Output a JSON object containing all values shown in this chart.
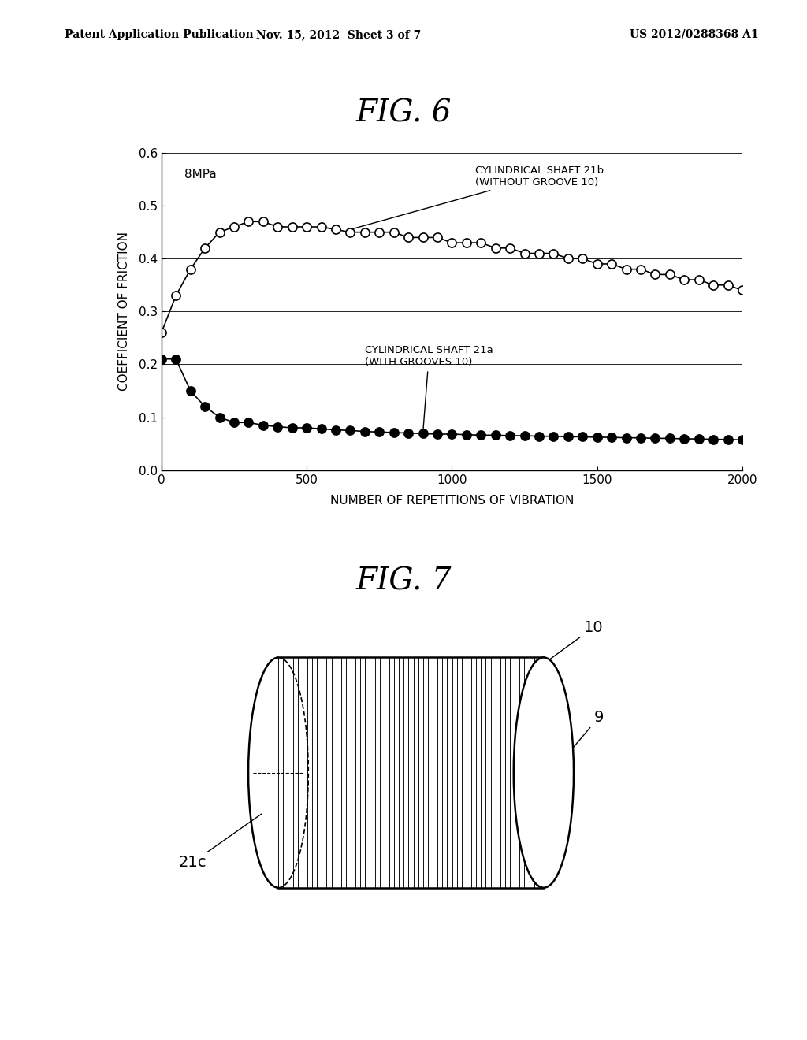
{
  "header_left": "Patent Application Publication",
  "header_mid": "Nov. 15, 2012  Sheet 3 of 7",
  "header_right": "US 2012/0288368 A1",
  "fig6_title": "FIG. 6",
  "fig7_title": "FIG. 7",
  "xlabel": "NUMBER OF REPETITIONS OF VIBRATION",
  "ylabel": "COEFFICIENT OF FRICTION",
  "pressure_label": "8MPa",
  "series_open_label_1": "CYLINDRICAL SHAFT 21b",
  "series_open_label_2": "(WITHOUT GROOVE 10)",
  "series_filled_label_1": "CYLINDRICAL SHAFT 21a",
  "series_filled_label_2": "(WITH GROOVES 10)",
  "xlim": [
    0,
    2000
  ],
  "ylim": [
    0,
    0.6
  ],
  "yticks": [
    0,
    0.1,
    0.2,
    0.3,
    0.4,
    0.5,
    0.6
  ],
  "xticks": [
    0,
    500,
    1000,
    1500,
    2000
  ],
  "open_x": [
    0,
    50,
    100,
    150,
    200,
    250,
    300,
    350,
    400,
    450,
    500,
    550,
    600,
    650,
    700,
    750,
    800,
    850,
    900,
    950,
    1000,
    1050,
    1100,
    1150,
    1200,
    1250,
    1300,
    1350,
    1400,
    1450,
    1500,
    1550,
    1600,
    1650,
    1700,
    1750,
    1800,
    1850,
    1900,
    1950,
    2000
  ],
  "open_y": [
    0.26,
    0.33,
    0.38,
    0.42,
    0.45,
    0.46,
    0.47,
    0.47,
    0.46,
    0.46,
    0.46,
    0.46,
    0.455,
    0.45,
    0.45,
    0.45,
    0.45,
    0.44,
    0.44,
    0.44,
    0.43,
    0.43,
    0.43,
    0.42,
    0.42,
    0.41,
    0.41,
    0.41,
    0.4,
    0.4,
    0.39,
    0.39,
    0.38,
    0.38,
    0.37,
    0.37,
    0.36,
    0.36,
    0.35,
    0.35,
    0.34
  ],
  "filled_x": [
    0,
    50,
    100,
    150,
    200,
    250,
    300,
    350,
    400,
    450,
    500,
    550,
    600,
    650,
    700,
    750,
    800,
    850,
    900,
    950,
    1000,
    1050,
    1100,
    1150,
    1200,
    1250,
    1300,
    1350,
    1400,
    1450,
    1500,
    1550,
    1600,
    1650,
    1700,
    1750,
    1800,
    1850,
    1900,
    1950,
    2000
  ],
  "filled_y": [
    0.21,
    0.21,
    0.15,
    0.12,
    0.1,
    0.09,
    0.09,
    0.085,
    0.082,
    0.08,
    0.08,
    0.078,
    0.076,
    0.075,
    0.073,
    0.072,
    0.071,
    0.07,
    0.069,
    0.068,
    0.068,
    0.067,
    0.066,
    0.066,
    0.065,
    0.065,
    0.064,
    0.064,
    0.063,
    0.063,
    0.062,
    0.062,
    0.061,
    0.061,
    0.06,
    0.06,
    0.059,
    0.059,
    0.058,
    0.058,
    0.057
  ],
  "background_color": "#ffffff",
  "line_color": "#000000",
  "fig7_label_21c": "21c",
  "fig7_label_10": "10",
  "fig7_label_9": "9"
}
